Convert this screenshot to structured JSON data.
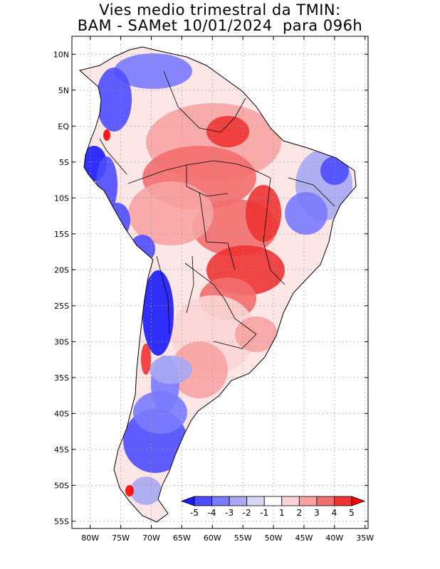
{
  "title": {
    "line1": "Vies medio trimestral da TMIN:",
    "line2": "BAM - SAMet 10/01/2024  para 096h"
  },
  "map": {
    "region": "South America",
    "lon_range": [
      -83,
      -34.5
    ],
    "lat_range": [
      -56,
      12.5
    ],
    "lon_ticks": [
      "80W",
      "75W",
      "70W",
      "65W",
      "60W",
      "55W",
      "50W",
      "45W",
      "40W",
      "35W"
    ],
    "lat_ticks": [
      "10N",
      "5N",
      "EQ",
      "5S",
      "10S",
      "15S",
      "20S",
      "25S",
      "30S",
      "35S",
      "40S",
      "45S",
      "50S",
      "55S"
    ],
    "grid": "dotted"
  },
  "colorbar": {
    "labels": [
      "-5",
      "-4",
      "-3",
      "-2",
      "-1",
      "1",
      "2",
      "3",
      "4",
      "5"
    ],
    "colors": [
      "#1a1aff",
      "#4d4dff",
      "#7a7aff",
      "#a9a9f5",
      "#d6d6f7",
      "#ffffff",
      "#fbd5d5",
      "#f8a3a3",
      "#f36e6e",
      "#ee3333",
      "#ff0000"
    ]
  }
}
